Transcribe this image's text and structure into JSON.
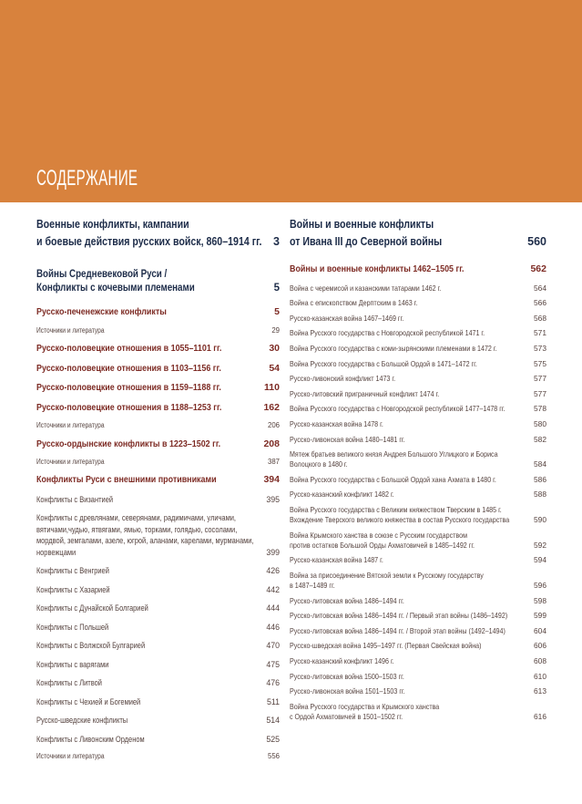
{
  "page_title": "СОДЕРЖАНИЕ",
  "colors": {
    "banner": "#d8823d",
    "navy": "#1d2c49",
    "maroon": "#7d2b24",
    "brown": "#55423e"
  },
  "left_column": {
    "section_header": {
      "text": "Военные конфликты, кампании\nи боевые действия русских войск, 860–1914 гг.",
      "page": "3"
    },
    "subsection_header": {
      "text": "Войны Средневековой Руси /\nКонфликты с кочевыми племенами",
      "page": "5"
    },
    "entries": [
      {
        "text": "Русско-печенежские конфликты",
        "page": "5",
        "style": "medium"
      },
      {
        "text": "Источники и литература",
        "page": "29",
        "style": "source"
      },
      {
        "text": "Русско-половецкие отношения в 1055–1101 гг.",
        "page": "30",
        "style": "medium"
      },
      {
        "text": "Русско-половецкие отношения в 1103–1156 гг.",
        "page": "54",
        "style": "medium"
      },
      {
        "text": "Русско-половецкие отношения в 1159–1188 гг.",
        "page": "110",
        "style": "medium"
      },
      {
        "text": "Русско-половецкие отношения в 1188–1253 гг.",
        "page": "162",
        "style": "medium"
      },
      {
        "text": "Источники и литература",
        "page": "206",
        "style": "source"
      },
      {
        "text": "Русско-ордынские конфликты в 1223–1502 гг.",
        "page": "208",
        "style": "medium"
      },
      {
        "text": "Источники и литература",
        "page": "387",
        "style": "source"
      },
      {
        "text": "Конфликты Руси с внешними противниками",
        "page": "394",
        "style": "medium"
      },
      {
        "text": "Конфликты с Византией",
        "page": "395",
        "style": "small"
      },
      {
        "text": "Конфликты с древлянами, северянами, радимичами, уличами,\nвятичами,чудью, ятвягами, ямью, торками, голядью, сосолами,\nмордвой, земгалами, азеле, югрой, аланами, карелами, мурманами,\nнорвежцами",
        "page": "399",
        "style": "small"
      },
      {
        "text": "Конфликты с Венгрией",
        "page": "426",
        "style": "small"
      },
      {
        "text": "Конфликты с Хазарией",
        "page": "442",
        "style": "small"
      },
      {
        "text": "Конфликты с Дунайской Болгарией",
        "page": "444",
        "style": "small"
      },
      {
        "text": "Конфликты с Польшей",
        "page": "446",
        "style": "small"
      },
      {
        "text": "Конфликты с Волжской Булгарией",
        "page": "470",
        "style": "small"
      },
      {
        "text": "Конфликты с варягами",
        "page": "475",
        "style": "small"
      },
      {
        "text": "Конфликты с Литвой",
        "page": "476",
        "style": "small"
      },
      {
        "text": "Конфликты с Чехией и Богемией",
        "page": "511",
        "style": "small"
      },
      {
        "text": "Русско-шведские конфликты",
        "page": "514",
        "style": "small"
      },
      {
        "text": "Конфликты с Ливонским Орденом",
        "page": "525",
        "style": "small"
      },
      {
        "text": "Источники и литература",
        "page": "556",
        "style": "source"
      }
    ]
  },
  "right_column": {
    "section_header": {
      "text": "Войны и военные конфликты\nот Ивана III до Северной войны",
      "page": "560"
    },
    "entries": [
      {
        "text": "Войны и военные конфликты 1462–1505 гг.",
        "page": "562",
        "style": "medium"
      },
      {
        "text": "Война с черемисой и казанскими татарами 1462 г.",
        "page": "564",
        "style": "small"
      },
      {
        "text": "Война с епископством Дерптским в 1463 г.",
        "page": "566",
        "style": "small"
      },
      {
        "text": "Русско-казанская война 1467–1469 гг.",
        "page": "568",
        "style": "small"
      },
      {
        "text": "Война Русского государства с Новгородской республикой 1471 г.",
        "page": "571",
        "style": "small"
      },
      {
        "text": "Война Русского государства с коми-зырянскими племенами в 1472 г.",
        "page": "573",
        "style": "small"
      },
      {
        "text": "Война Русского государства с Большой Ордой в 1471–1472 гг.",
        "page": "575",
        "style": "small"
      },
      {
        "text": "Русско-ливонский конфликт 1473 г.",
        "page": "577",
        "style": "small"
      },
      {
        "text": "Русско-литовский приграничный конфликт 1474 г.",
        "page": "577",
        "style": "small"
      },
      {
        "text": "Война Русского государства с Новгородской республикой 1477–1478 гг.",
        "page": "578",
        "style": "small"
      },
      {
        "text": "Русско-казанская война 1478 г.",
        "page": "580",
        "style": "small"
      },
      {
        "text": "Русско-ливонская война 1480–1481 гг.",
        "page": "582",
        "style": "small"
      },
      {
        "text": "Мятеж братьев великого князя Андрея Большого Углицкого и Бориса\nВолоцкого в 1480 г.",
        "page": "584",
        "style": "small"
      },
      {
        "text": "Война Русского государства с Большой Ордой хана Ахмата в 1480 г.",
        "page": "586",
        "style": "small"
      },
      {
        "text": "Русско-казанский конфликт 1482 г.",
        "page": "588",
        "style": "small"
      },
      {
        "text": "Война Русского государства с Великим княжеством Тверским в 1485 г.\nВхождение Тверского великого княжества в состав Русского государства",
        "page": "590",
        "style": "small"
      },
      {
        "text": "Война Крымского ханства в союзе с Русским государством\nпротив остатков Большой Орды Ахматовичей в 1485–1492 гг.",
        "page": "592",
        "style": "small"
      },
      {
        "text": "Русско-казанская война 1487 г.",
        "page": "594",
        "style": "small"
      },
      {
        "text": "Война за присоединение Вятской земли к Русскому государству\nв 1487–1489 гг.",
        "page": "596",
        "style": "small"
      },
      {
        "text": "Русско-литовская война 1486–1494 гг.",
        "page": "598",
        "style": "small"
      },
      {
        "text": "Русско-литовская война 1486–1494 гг. / Первый этап войны (1486–1492)",
        "page": "599",
        "style": "small"
      },
      {
        "text": "Русско-литовская война 1486–1494 гг. / Второй этап войны (1492–1494)",
        "page": "604",
        "style": "small"
      },
      {
        "text": "Русско-шведская война 1495–1497 гг. (Первая Свейская война)",
        "page": "606",
        "style": "small"
      },
      {
        "text": "Русско-казанский конфликт 1496 г.",
        "page": "608",
        "style": "small"
      },
      {
        "text": "Русско-литовская война 1500–1503 гг.",
        "page": "610",
        "style": "small"
      },
      {
        "text": "Русско-ливонская война 1501–1503 гг.",
        "page": "613",
        "style": "small"
      },
      {
        "text": "Война Русского государства и Крымского ханства\nс Ордой Ахматовичей в 1501–1502 гг.",
        "page": "616",
        "style": "small"
      }
    ]
  }
}
